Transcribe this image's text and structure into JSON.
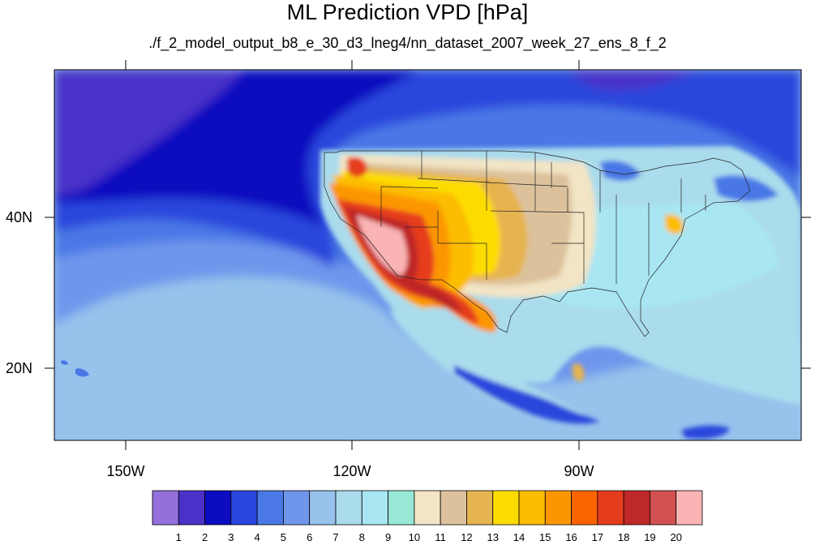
{
  "title": "ML Prediction VPD [hPa]",
  "subtitle": "./f_2_model_output_b8_e_30_d3_lneg4/nn_dataset_2007_week_27_ens_8_f_2",
  "lon_labels": [
    "150W",
    "120W",
    "90W"
  ],
  "lat_labels": [
    "40N",
    "20N"
  ],
  "colorbar": {
    "labels": [
      "1",
      "2",
      "3",
      "4",
      "5",
      "6",
      "7",
      "8",
      "9",
      "10",
      "11",
      "12",
      "13",
      "14",
      "15",
      "16",
      "17",
      "18",
      "19",
      "20"
    ],
    "colors": [
      "#9370db",
      "#4a32c8",
      "#0c0cc0",
      "#2a46dc",
      "#4a78e6",
      "#7096ec",
      "#96c2ec",
      "#aadcec",
      "#a8e6f2",
      "#98e8d8",
      "#f2e4c4",
      "#dcc29c",
      "#e6b450",
      "#fcdc00",
      "#fcbc00",
      "#fc9600",
      "#fc6400",
      "#e63c1e",
      "#be2828",
      "#d25050",
      "#fab4b4"
    ]
  },
  "map_colors": {
    "ocean_deep": "#4a32c8",
    "ocean_dark": "#0c0cc0",
    "ocean_mid": "#2a46dc",
    "ocean_blue": "#4a78e6",
    "ocean_light": "#7096ec",
    "ocean_pale": "#96c2ec",
    "land_cyan": "#aadcec",
    "land_aqua": "#a8e6f2",
    "land_tan": "#f2e4c4",
    "land_brown": "#dcc29c",
    "land_gold": "#e6b450",
    "land_yellow": "#fcdc00",
    "land_amber": "#fcbc00",
    "land_orange": "#fc9600",
    "land_red": "#e63c1e",
    "land_darkred": "#be2828",
    "land_pink": "#fab4b4"
  }
}
